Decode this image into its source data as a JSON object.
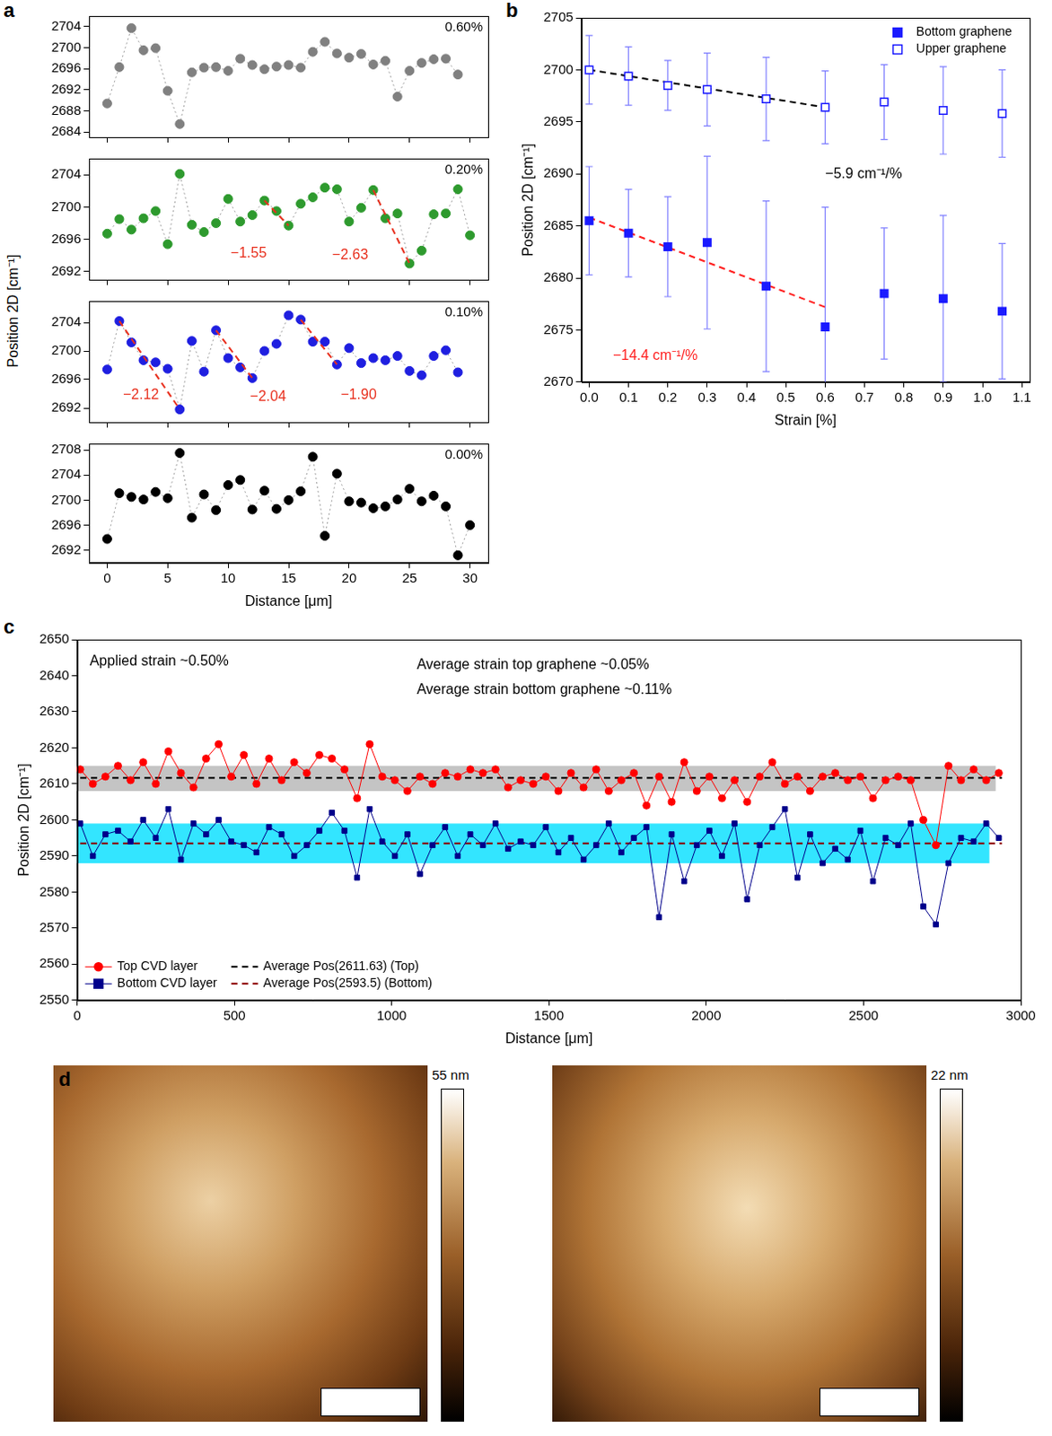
{
  "chart_data": [
    {
      "panel": "a",
      "type": "scatter",
      "xlabel": "Distance [μm]",
      "ylabel": "Position 2D [cm⁻¹]",
      "xlim": [
        -1.5,
        31.5
      ],
      "xticks": [
        0,
        5,
        10,
        15,
        20,
        25,
        30
      ],
      "grid": false,
      "line_style": "dotted",
      "subplots": [
        {
          "title": "0.60%",
          "color": "#808080",
          "marker": "circle",
          "ylim": [
            2683,
            2706
          ],
          "yticks": [
            2684,
            2688,
            2692,
            2696,
            2700,
            2704
          ],
          "x": [
            0,
            1,
            2,
            3,
            4,
            5,
            6,
            7,
            8,
            9,
            10,
            11,
            12,
            13,
            14,
            15,
            16,
            17,
            18,
            19,
            20,
            21,
            22,
            23,
            24,
            25,
            26,
            27,
            28,
            29
          ],
          "values": [
            2689.4,
            2696.3,
            2703.7,
            2699.5,
            2699.9,
            2691.8,
            2685.5,
            2695.3,
            2696.2,
            2696.3,
            2695.6,
            2697.9,
            2696.7,
            2695.9,
            2696.4,
            2696.7,
            2696.2,
            2699.2,
            2701.1,
            2698.9,
            2698.1,
            2698.8,
            2696.8,
            2697.5,
            2690.7,
            2695.6,
            2697.1,
            2697.8,
            2697.9,
            2694.9
          ]
        },
        {
          "title": "0.20%",
          "color": "#2e9a2e",
          "marker": "circle",
          "ylim": [
            2691,
            2706
          ],
          "yticks": [
            2692,
            2696,
            2700,
            2704
          ],
          "x": [
            0,
            1,
            2,
            3,
            4,
            5,
            6,
            7,
            8,
            9,
            10,
            11,
            12,
            13,
            14,
            15,
            16,
            17,
            18,
            19,
            20,
            21,
            22,
            23,
            24,
            25,
            26,
            27,
            28,
            29,
            30
          ],
          "values": [
            2696.7,
            2698.5,
            2697.2,
            2698.6,
            2699.5,
            2695.4,
            2704.1,
            2697.8,
            2696.9,
            2698.0,
            2701.0,
            2698.2,
            2699.0,
            2700.8,
            2699.5,
            2697.7,
            2700.4,
            2701.2,
            2702.4,
            2702.2,
            2698.2,
            2699.9,
            2702.1,
            2698.6,
            2699.2,
            2693.0,
            2694.6,
            2699.1,
            2699.2,
            2702.2,
            2696.5
          ],
          "fit_lines": [
            {
              "x": [
                13,
                15
              ],
              "values": [
                2700.8,
                2697.7
              ],
              "color": "#e8301e",
              "line_style": "dashed"
            },
            {
              "x": [
                22,
                25
              ],
              "values": [
                2702.1,
                2693.0
              ],
              "color": "#e8301e",
              "line_style": "dashed"
            }
          ],
          "annotations": [
            {
              "text": "−1.55",
              "at": [
                10.2,
                2694.2
              ],
              "color": "#e8301e"
            },
            {
              "text": "−2.63",
              "at": [
                18.6,
                2694
              ],
              "color": "#e8301e"
            }
          ]
        },
        {
          "title": "0.10%",
          "color": "#1f1fe0",
          "marker": "circle",
          "ylim": [
            2690,
            2707
          ],
          "yticks": [
            2692,
            2696,
            2700,
            2704
          ],
          "x": [
            0,
            1,
            2,
            3,
            4,
            5,
            6,
            7,
            8,
            9,
            10,
            11,
            12,
            13,
            14,
            15,
            16,
            17,
            18,
            19,
            20,
            21,
            22,
            23,
            24,
            25,
            26,
            27,
            28,
            29
          ],
          "values": [
            2697.4,
            2704.2,
            2701.2,
            2698.7,
            2698.4,
            2697.5,
            2691.8,
            2701.4,
            2697.1,
            2702.9,
            2699.0,
            2697.7,
            2696.2,
            2700.0,
            2701.0,
            2705.0,
            2704.4,
            2701.3,
            2701.3,
            2698.1,
            2700.4,
            2698.3,
            2699.0,
            2698.7,
            2699.3,
            2697.2,
            2696.6,
            2699.3,
            2700.1,
            2697.0
          ],
          "fit_lines": [
            {
              "x": [
                1,
                6
              ],
              "values": [
                2704.2,
                2691.8
              ],
              "color": "#e8301e",
              "line_style": "dashed"
            },
            {
              "x": [
                9,
                12
              ],
              "values": [
                2702.9,
                2696.2
              ],
              "color": "#e8301e",
              "line_style": "dashed"
            },
            {
              "x": [
                16,
                19
              ],
              "values": [
                2704.4,
                2698.1
              ],
              "color": "#e8301e",
              "line_style": "dashed"
            }
          ],
          "annotations": [
            {
              "text": "−2.12",
              "at": [
                1.3,
                2693.8
              ],
              "color": "#e8301e"
            },
            {
              "text": "−2.04",
              "at": [
                11.8,
                2693.6
              ],
              "color": "#e8301e"
            },
            {
              "text": "−1.90",
              "at": [
                19.3,
                2693.8
              ],
              "color": "#e8301e"
            }
          ]
        },
        {
          "title": "0.00%",
          "color": "#000000",
          "marker": "circle",
          "ylim": [
            2690,
            2709
          ],
          "yticks": [
            2692,
            2696,
            2700,
            2704,
            2708
          ],
          "x": [
            0,
            1,
            2,
            3,
            4,
            5,
            6,
            7,
            8,
            9,
            10,
            11,
            12,
            13,
            14,
            15,
            16,
            17,
            18,
            19,
            20,
            21,
            22,
            23,
            24,
            25,
            26,
            27,
            28,
            29,
            30
          ],
          "values": [
            2693.8,
            2701.1,
            2700.5,
            2700.1,
            2701.3,
            2700.3,
            2707.5,
            2697.2,
            2700.9,
            2698.4,
            2702.4,
            2703.2,
            2698.5,
            2701.5,
            2698.6,
            2700.0,
            2701.4,
            2706.9,
            2694.3,
            2704.2,
            2699.8,
            2699.6,
            2698.7,
            2699.0,
            2700.1,
            2701.8,
            2699.8,
            2700.7,
            2699.0,
            2691.2,
            2696.0
          ]
        }
      ]
    },
    {
      "panel": "b",
      "type": "scatter",
      "xlabel": "Strain [%]",
      "ylabel": "Position 2D [cm⁻¹]",
      "xlim": [
        -0.02,
        1.12
      ],
      "xticks": [
        {
          "value": 0,
          "label": "0.0"
        },
        0.1,
        0.2,
        0.3,
        0.4,
        0.5,
        0.6,
        0.7,
        0.8,
        0.9,
        {
          "value": 1,
          "label": "1.0"
        },
        1.1
      ],
      "ylim": [
        2670,
        2705
      ],
      "yticks": [
        2670,
        2675,
        2680,
        2685,
        2690,
        2695,
        2700,
        2705
      ],
      "grid": false,
      "legend": "upper right",
      "series": [
        {
          "name": "Bottom graphene",
          "color": "#1a1aff",
          "marker": "square",
          "x": [
            0,
            0.1,
            0.2,
            0.3,
            0.45,
            0.6,
            0.75,
            0.9,
            1.05
          ],
          "values": [
            2685.5,
            2684.3,
            2683.0,
            2683.4,
            2679.2,
            2675.3,
            2678.5,
            2678.0,
            2676.8
          ],
          "errors": [
            5.2,
            4.2,
            4.8,
            8.3,
            8.2,
            11.5,
            6.3,
            8.0,
            6.5
          ]
        },
        {
          "name": "Upper graphene",
          "color": "#1a1aff",
          "marker": "open_square",
          "x": [
            0,
            0.1,
            0.2,
            0.3,
            0.45,
            0.6,
            0.75,
            0.9,
            1.05
          ],
          "values": [
            2700.0,
            2699.4,
            2698.5,
            2698.1,
            2697.2,
            2696.4,
            2696.9,
            2696.1,
            2695.8
          ],
          "errors": [
            3.3,
            2.8,
            2.4,
            3.5,
            4.0,
            3.5,
            3.6,
            4.2,
            4.2
          ]
        }
      ],
      "fit_lines": [
        {
          "x": [
            0,
            0.6
          ],
          "values": [
            2685.8,
            2677.2
          ],
          "color": "#ff2020",
          "line_style": "dashed"
        },
        {
          "x": [
            0,
            0.6
          ],
          "values": [
            2700.0,
            2696.4
          ],
          "color": "#000000",
          "line_style": "dashed"
        }
      ],
      "annotations": [
        {
          "text": "−14.4 cm⁻¹/%",
          "at": [
            0.06,
            2672.5
          ],
          "color": "#ff2020"
        },
        {
          "text": "−5.9 cm⁻¹/%",
          "at": [
            0.6,
            2690
          ],
          "color": "#000000"
        }
      ]
    },
    {
      "panel": "c",
      "type": "scatter",
      "xlabel": "Distance [μm]",
      "ylabel": "Position 2D [cm⁻¹]",
      "xlim": [
        0,
        3000
      ],
      "xticks": [
        0,
        500,
        1000,
        1500,
        2000,
        2500,
        3000
      ],
      "ylim": [
        2550,
        2650
      ],
      "yticks": [
        2550,
        2560,
        2570,
        2580,
        2590,
        2600,
        2610,
        2620,
        2630,
        2640,
        2650
      ],
      "grid": false,
      "legend": "lower left",
      "x": [
        10,
        50,
        90,
        130,
        170,
        210,
        250,
        290,
        330,
        370,
        410,
        450,
        490,
        530,
        570,
        610,
        650,
        690,
        730,
        770,
        810,
        850,
        890,
        930,
        970,
        1010,
        1050,
        1090,
        1130,
        1170,
        1210,
        1250,
        1290,
        1330,
        1370,
        1410,
        1450,
        1490,
        1530,
        1570,
        1610,
        1650,
        1690,
        1730,
        1770,
        1810,
        1850,
        1890,
        1930,
        1970,
        2010,
        2050,
        2090,
        2130,
        2170,
        2210,
        2250,
        2290,
        2330,
        2370,
        2410,
        2450,
        2490,
        2530,
        2570,
        2610,
        2650,
        2690,
        2730,
        2770,
        2810,
        2850,
        2890,
        2930
      ],
      "series": [
        {
          "name": "Top CVD layer",
          "color": "#ff0000",
          "marker": "circle",
          "line_style": "solid",
          "values": [
            2614,
            2610,
            2612,
            2615,
            2611,
            2616,
            2610,
            2619,
            2613,
            2609,
            2617,
            2621,
            2612,
            2618,
            2610,
            2617,
            2611,
            2616,
            2613,
            2618,
            2617,
            2614,
            2606,
            2621,
            2612,
            2611,
            2608,
            2612,
            2610,
            2613,
            2612,
            2614,
            2613,
            2614,
            2609,
            2611,
            2610,
            2612,
            2608,
            2613,
            2609,
            2614,
            2608,
            2611,
            2613,
            2604,
            2612,
            2605,
            2616,
            2608,
            2612,
            2606,
            2611,
            2605,
            2612,
            2616,
            2610,
            2612,
            2608,
            2612,
            2613,
            2611,
            2612,
            2606,
            2611,
            2612,
            2611,
            2600,
            2593,
            2615,
            2611,
            2614,
            2611,
            2613
          ]
        },
        {
          "name": "Bottom CVD layer",
          "color": "#00008b",
          "marker": "square",
          "line_style": "solid",
          "values": [
            2599,
            2590,
            2596,
            2597,
            2594,
            2600,
            2595,
            2603,
            2589,
            2599,
            2596,
            2600,
            2594,
            2593,
            2591,
            2598,
            2596,
            2590,
            2593,
            2597,
            2602,
            2597,
            2584,
            2603,
            2594,
            2590,
            2596,
            2585,
            2593,
            2598,
            2590,
            2596,
            2593,
            2599,
            2592,
            2594,
            2593,
            2598,
            2591,
            2595,
            2589,
            2593,
            2599,
            2591,
            2595,
            2598,
            2573,
            2596,
            2583,
            2593,
            2597,
            2590,
            2599,
            2578,
            2593,
            2598,
            2603,
            2584,
            2596,
            2588,
            2592,
            2589,
            2597,
            2583,
            2595,
            2593,
            2599,
            2576,
            2571,
            2588,
            2595,
            2594,
            2599,
            2595
          ]
        },
        {
          "name": "Average Pos(2611.63) (Top)",
          "type": "line",
          "color": "#000000",
          "line_style": "dashed",
          "x": [
            10,
            2940
          ],
          "values": [
            2611.63,
            2611.63
          ]
        },
        {
          "name": "Average Pos(2593.5) (Bottom)",
          "type": "line",
          "color": "#8b0000",
          "line_style": "dashed",
          "x": [
            10,
            2940
          ],
          "values": [
            2593.5,
            2593.5
          ]
        }
      ],
      "bands": [
        {
          "x": [
            0,
            2920
          ],
          "y": [
            2608,
            2615
          ],
          "color": "#c4c4c4"
        },
        {
          "x": [
            0,
            2900
          ],
          "y": [
            2588,
            2599
          ],
          "color": "#33e5ff"
        }
      ],
      "annotations": [
        {
          "text": "Applied strain ~0.50%",
          "at": [
            40,
            2644
          ],
          "color": "#000000"
        },
        {
          "text": "Average strain top graphene ~0.05%",
          "at": [
            1080,
            2643
          ],
          "color": "#000000"
        },
        {
          "text": "Average strain bottom graphene ~0.11%",
          "at": [
            1080,
            2636
          ],
          "color": "#000000"
        }
      ]
    },
    {
      "panel": "d",
      "type": "image",
      "images": [
        {
          "colorbar_label": "55 nm"
        },
        {
          "colorbar_label": "22 nm"
        }
      ]
    }
  ]
}
